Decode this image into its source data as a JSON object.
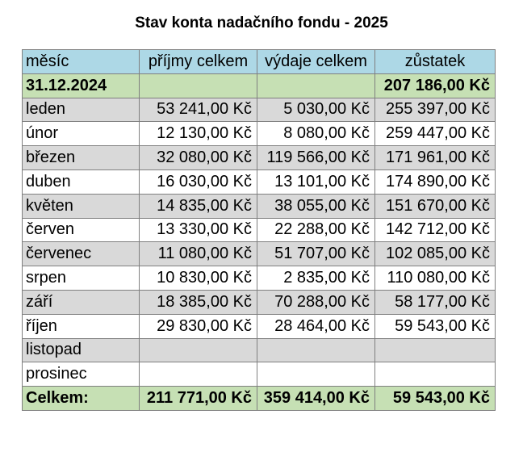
{
  "title": "Stav konta nadačního fondu - 2025",
  "headers": [
    "měsíc",
    "příjmy celkem",
    "výdaje celkem",
    "zůstatek"
  ],
  "opening": {
    "label": "31.12.2024",
    "balance": "207 186,00 Kč"
  },
  "rows": [
    {
      "month": "leden",
      "income": "53 241,00 Kč",
      "expense": "5 030,00 Kč",
      "balance": "255 397,00 Kč"
    },
    {
      "month": "únor",
      "income": "12 130,00 Kč",
      "expense": "8 080,00 Kč",
      "balance": "259 447,00 Kč"
    },
    {
      "month": "březen",
      "income": "32 080,00 Kč",
      "expense": "119 566,00 Kč",
      "balance": "171 961,00 Kč"
    },
    {
      "month": "duben",
      "income": "16 030,00 Kč",
      "expense": "13 101,00 Kč",
      "balance": "174 890,00 Kč"
    },
    {
      "month": "květen",
      "income": "14 835,00 Kč",
      "expense": "38 055,00 Kč",
      "balance": "151 670,00 Kč"
    },
    {
      "month": "červen",
      "income": "13 330,00 Kč",
      "expense": "22 288,00 Kč",
      "balance": "142 712,00 Kč"
    },
    {
      "month": "červenec",
      "income": "11 080,00 Kč",
      "expense": "51 707,00 Kč",
      "balance": "102 085,00 Kč"
    },
    {
      "month": "srpen",
      "income": "10 830,00 Kč",
      "expense": "2 835,00 Kč",
      "balance": "110 080,00 Kč"
    },
    {
      "month": "září",
      "income": "18 385,00 Kč",
      "expense": "70 288,00 Kč",
      "balance": "58 177,00 Kč"
    },
    {
      "month": "říjen",
      "income": "29 830,00 Kč",
      "expense": "28 464,00 Kč",
      "balance": "59 543,00 Kč"
    },
    {
      "month": "listopad",
      "income": "",
      "expense": "",
      "balance": ""
    },
    {
      "month": "prosinec",
      "income": "",
      "expense": "",
      "balance": ""
    }
  ],
  "total": {
    "label": "Celkem:",
    "income": "211 771,00 Kč",
    "expense": "359 414,00 Kč",
    "balance": "59 543,00 Kč"
  },
  "colors": {
    "header_bg": "#add8e6",
    "summary_bg": "#c6e0b4",
    "stripe_bg": "#d9d9d9",
    "border": "#7f7f7f"
  }
}
